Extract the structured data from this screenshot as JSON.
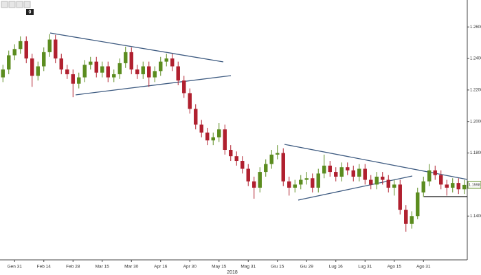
{
  "chart_data": {
    "type": "candlestick",
    "up_color": "#5b8c1f",
    "down_color": "#b0202f",
    "categories": [
      null,
      null,
      "Gen 31",
      null,
      null,
      null,
      null,
      "Feb 14",
      null,
      null,
      null,
      null,
      "Feb 28",
      null,
      null,
      null,
      null,
      "Mar 15",
      null,
      null,
      null,
      null,
      "Mar 30",
      null,
      null,
      null,
      null,
      "Apr 16",
      null,
      null,
      null,
      null,
      "Apr 30",
      null,
      null,
      null,
      null,
      "May 15",
      null,
      null,
      null,
      null,
      "Mag 31",
      null,
      null,
      null,
      null,
      "Giu 15",
      null,
      null,
      null,
      null,
      "Giu 29",
      null,
      null,
      null,
      null,
      "Lug 16",
      null,
      null,
      null,
      null,
      "Lug 31",
      null,
      null,
      null,
      null,
      "Ago 15",
      null,
      null,
      null,
      null,
      "Ago 31",
      null,
      null,
      null,
      null,
      null,
      null,
      null
    ],
    "x_year_label": "2018",
    "open": [
      1.228,
      1.233,
      1.242,
      1.246,
      1.251,
      1.24,
      1.229,
      1.235,
      1.244,
      1.252,
      1.24,
      1.233,
      1.23,
      1.224,
      1.228,
      1.236,
      1.238,
      1.231,
      1.235,
      1.228,
      1.23,
      1.237,
      1.244,
      1.233,
      1.23,
      1.235,
      1.228,
      1.232,
      1.238,
      1.24,
      1.235,
      1.226,
      1.218,
      1.208,
      1.198,
      1.193,
      1.188,
      1.19,
      1.195,
      1.182,
      1.178,
      1.175,
      1.17,
      1.162,
      1.158,
      1.168,
      1.173,
      1.179,
      1.18,
      1.162,
      1.158,
      1.16,
      1.163,
      1.164,
      1.158,
      1.167,
      1.172,
      1.168,
      1.165,
      1.171,
      1.169,
      1.165,
      1.17,
      1.163,
      1.16,
      1.165,
      1.163,
      1.158,
      1.16,
      1.144,
      1.135,
      1.14,
      1.155,
      1.162,
      1.169,
      1.166,
      1.16,
      1.158,
      1.161,
      1.157
    ],
    "high": [
      1.236,
      1.245,
      1.249,
      1.254,
      1.254,
      1.243,
      1.238,
      1.247,
      1.2555,
      1.255,
      1.243,
      1.236,
      1.233,
      1.231,
      1.239,
      1.241,
      1.241,
      1.238,
      1.238,
      1.233,
      1.24,
      1.2475,
      1.247,
      1.236,
      1.238,
      1.238,
      1.235,
      1.241,
      1.243,
      1.243,
      1.238,
      1.229,
      1.221,
      1.211,
      1.201,
      1.196,
      1.193,
      1.199,
      1.198,
      1.185,
      1.181,
      1.178,
      1.173,
      1.165,
      1.171,
      1.176,
      1.182,
      1.185,
      1.183,
      1.165,
      1.163,
      1.166,
      1.168,
      1.167,
      1.17,
      1.179,
      1.175,
      1.171,
      1.174,
      1.174,
      1.172,
      1.173,
      1.173,
      1.166,
      1.168,
      1.168,
      1.166,
      1.163,
      1.163,
      1.147,
      1.143,
      1.158,
      1.165,
      1.173,
      1.172,
      1.169,
      1.163,
      1.164,
      1.164,
      1.163
    ],
    "low": [
      1.225,
      1.23,
      1.239,
      1.243,
      1.237,
      1.222,
      1.226,
      1.232,
      1.241,
      1.237,
      1.23,
      1.227,
      1.2155,
      1.221,
      1.225,
      1.233,
      1.228,
      1.228,
      1.225,
      1.225,
      1.227,
      1.234,
      1.23,
      1.227,
      1.227,
      1.222,
      1.225,
      1.229,
      1.235,
      1.232,
      1.223,
      1.215,
      1.205,
      1.195,
      1.19,
      1.185,
      1.185,
      1.187,
      1.179,
      1.175,
      1.172,
      1.167,
      1.159,
      1.151,
      1.155,
      1.165,
      1.17,
      1.176,
      1.159,
      1.153,
      1.155,
      1.157,
      1.16,
      1.155,
      1.155,
      1.164,
      1.165,
      1.162,
      1.162,
      1.166,
      1.162,
      1.162,
      1.16,
      1.157,
      1.157,
      1.16,
      1.155,
      1.153,
      1.141,
      1.1301,
      1.132,
      1.138,
      1.152,
      1.159,
      1.163,
      1.157,
      1.153,
      1.155,
      1.154,
      1.154
    ],
    "close": [
      1.233,
      1.242,
      1.246,
      1.251,
      1.24,
      1.229,
      1.235,
      1.244,
      1.252,
      1.24,
      1.233,
      1.23,
      1.224,
      1.228,
      1.236,
      1.238,
      1.231,
      1.235,
      1.228,
      1.23,
      1.237,
      1.244,
      1.233,
      1.23,
      1.235,
      1.228,
      1.232,
      1.238,
      1.24,
      1.235,
      1.226,
      1.218,
      1.208,
      1.198,
      1.193,
      1.188,
      1.19,
      1.195,
      1.182,
      1.178,
      1.175,
      1.17,
      1.162,
      1.158,
      1.168,
      1.173,
      1.179,
      1.18,
      1.162,
      1.158,
      1.16,
      1.163,
      1.164,
      1.158,
      1.167,
      1.172,
      1.168,
      1.165,
      1.171,
      1.169,
      1.165,
      1.17,
      1.163,
      1.16,
      1.165,
      1.163,
      1.158,
      1.16,
      1.144,
      1.135,
      1.14,
      1.155,
      1.162,
      1.169,
      1.166,
      1.16,
      1.158,
      1.161,
      1.157,
      1.1598
    ],
    "last_label": "1.1598",
    "ylim": [
      1.1122,
      1.2771
    ],
    "yticks": [
      {
        "value": 1.14,
        "label": "1.1400"
      },
      {
        "value": 1.18,
        "label": "1.1800"
      },
      {
        "value": 1.2,
        "label": "1.2000"
      },
      {
        "value": 1.22,
        "label": "1.2200"
      },
      {
        "value": 1.24,
        "label": "1.2400"
      },
      {
        "value": 1.26,
        "label": "1.2600"
      }
    ],
    "toolbar_badge": "0"
  }
}
